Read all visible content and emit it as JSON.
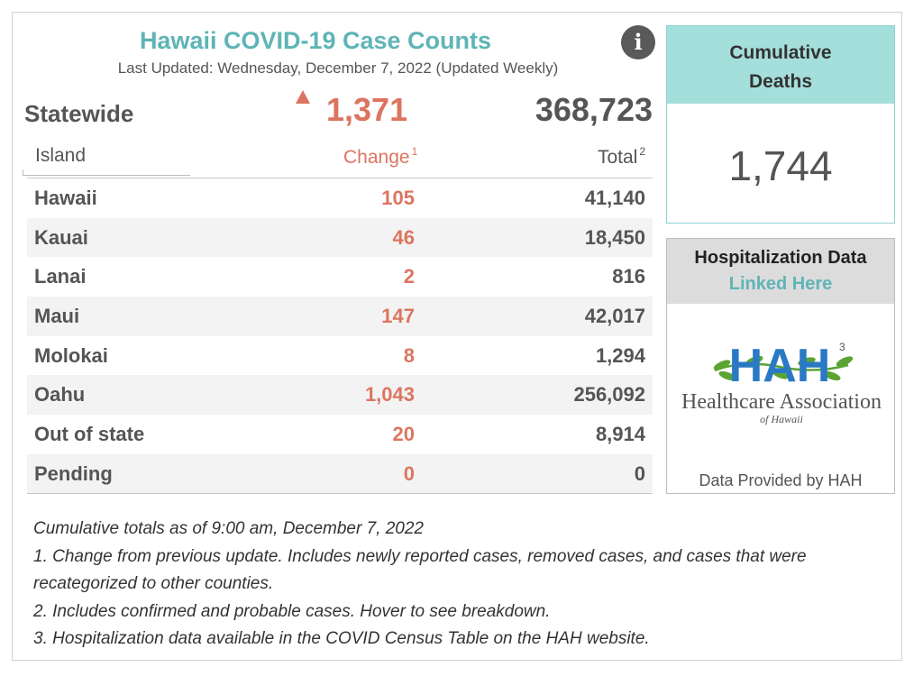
{
  "header": {
    "title": "Hawaii COVID-19 Case Counts",
    "subtitle": "Last Updated: Wednesday, December 7, 2022 (Updated Weekly)",
    "info_icon": "info-circle-icon"
  },
  "statewide": {
    "label": "Statewide",
    "change": "1,371",
    "total": "368,723",
    "trend_icon": "up-triangle-icon"
  },
  "table": {
    "columns": {
      "island": "Island",
      "change": "Change",
      "change_sup": "1",
      "total": "Total",
      "total_sup": "2"
    },
    "rows": [
      {
        "island": "Hawaii",
        "change": "105",
        "total": "41,140"
      },
      {
        "island": "Kauai",
        "change": "46",
        "total": "18,450"
      },
      {
        "island": "Lanai",
        "change": "2",
        "total": "816"
      },
      {
        "island": "Maui",
        "change": "147",
        "total": "42,017"
      },
      {
        "island": "Molokai",
        "change": "8",
        "total": "1,294"
      },
      {
        "island": "Oahu",
        "change": "1,043",
        "total": "256,092"
      },
      {
        "island": "Out of state",
        "change": "20",
        "total": "8,914"
      },
      {
        "island": "Pending",
        "change": "0",
        "total": "0"
      }
    ]
  },
  "deaths": {
    "label_line1": "Cumulative",
    "label_line2": "Deaths",
    "value": "1,744"
  },
  "hospitalization": {
    "title": "Hospitalization Data",
    "link": "Linked Here",
    "logo_letters": "HAH",
    "logo_sup": "3",
    "logo_name": "Healthcare Association",
    "logo_sub": "of Hawaii",
    "caption": "Data Provided by HAH"
  },
  "notes": {
    "line1": "Cumulative totals as of 9:00 am, December 7, 2022",
    "line2": "1. Change from previous update. Includes newly reported cases, removed cases, and cases that were",
    "line3": "recategorized to other counties.",
    "line4": "2. Includes confirmed and probable cases. Hover to see breakdown.",
    "line5": "3. Hospitalization data available in the COVID Census Table on the HAH website."
  },
  "colors": {
    "accent_teal": "#5fb4b6",
    "change_orange": "#dc7560",
    "deaths_header": "#a5dfdb",
    "logo_blue": "#2a79c4",
    "logo_green": "#5aa432"
  }
}
